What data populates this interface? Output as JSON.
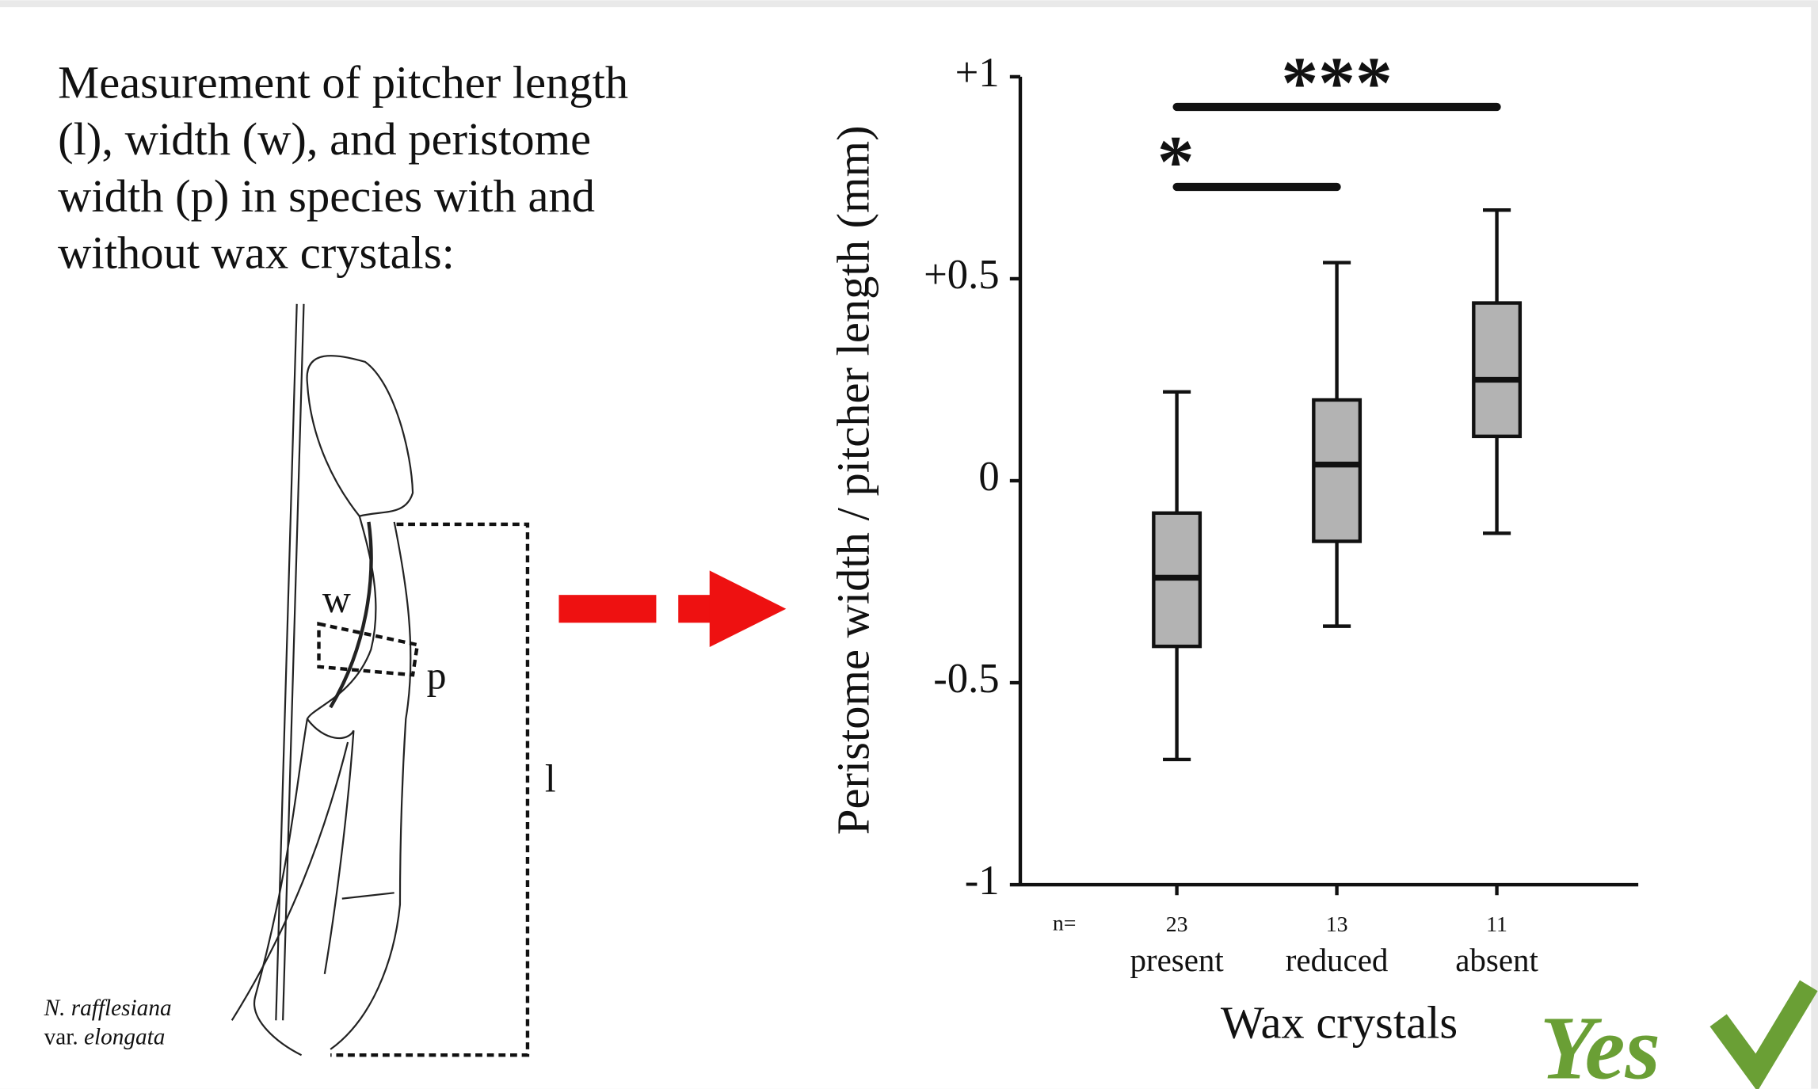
{
  "description": [
    "Measurement of pitcher length",
    "(l), width (w), and peristome",
    "width (p) in species with and",
    "without wax crystals:"
  ],
  "drawing_labels": {
    "w": "w",
    "p": "p",
    "l": "l"
  },
  "species": {
    "genus": "N. rafflesiana",
    "var": "var.",
    "variety": "elongata"
  },
  "stamp": "Yes",
  "chart_data": {
    "type": "box",
    "y_label": "Peristome width / pitcher length (mm)",
    "x_label": "Wax crystals",
    "categories": [
      "present",
      "reduced",
      "absent"
    ],
    "n_label": "n=",
    "n": [
      23,
      13,
      11
    ],
    "boxes": [
      {
        "min": -0.69,
        "q1": -0.41,
        "median": -0.24,
        "q3": -0.08,
        "max": 0.22
      },
      {
        "min": -0.36,
        "q1": -0.15,
        "median": 0.04,
        "q3": 0.2,
        "max": 0.54
      },
      {
        "min": -0.13,
        "q1": 0.11,
        "median": 0.25,
        "q3": 0.44,
        "max": 0.67
      }
    ],
    "color": "#b3b3b3",
    "ylim": [
      -1,
      1
    ],
    "yticks": [
      -1,
      -0.5,
      0,
      {
        "value": 0.5,
        "label": "+0.5"
      },
      {
        "value": 1,
        "label": "+1"
      }
    ],
    "significance": [
      {
        "label": "***",
        "between": [
          "present",
          "absent"
        ]
      },
      {
        "label": "*",
        "between": [
          "present",
          "reduced"
        ]
      }
    ]
  }
}
